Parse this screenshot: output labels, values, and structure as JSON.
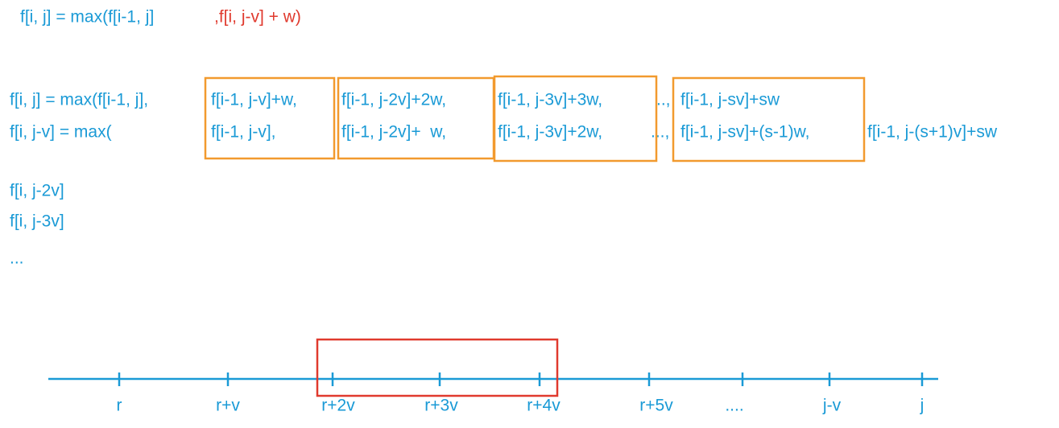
{
  "formula": [
    "f[i, j] = max(f[i-1, j]",
    ",f[i, j-v] + w)"
  ],
  "row1": [
    "f[i, j] = max(f[i-1, j],",
    "f[i-1, j-v]+w,",
    "f[i-1, j-2v]+2w,",
    "f[i-1, j-3v]+3w,",
    "..,",
    "f[i-1, j-sv]+sw"
  ],
  "row2": [
    "f[i, j-v] = max(",
    "f[i-1, j-v],",
    "f[i-1, j-2v]+  w,",
    "f[i-1, j-3v]+2w,",
    "...,",
    "f[i-1, j-sv]+(s-1)w,",
    "f[i-1, j-(s+1)v]+sw"
  ],
  "list": [
    "f[i, j-2v]",
    "f[i, j-3v]",
    "..."
  ],
  "axis_labels": [
    "r",
    "r+v",
    "r+2v",
    "r+3v",
    "r+4v",
    "r+5v",
    "....",
    "j-v",
    "j"
  ]
}
